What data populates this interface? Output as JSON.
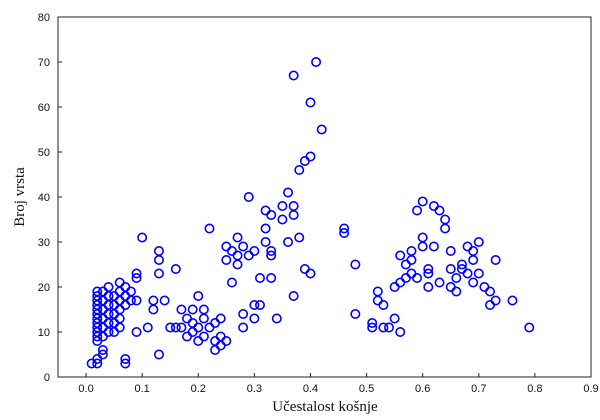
{
  "chart_data": {
    "type": "scatter",
    "xlabel": "Učestalost košnje",
    "ylabel": "Broj vrsta",
    "xlim": [
      -0.05,
      0.9
    ],
    "ylim": [
      0,
      80
    ],
    "xticks": [
      "0.0",
      "0.1",
      "0.2",
      "0.3",
      "0.4",
      "0.5",
      "0.6",
      "0.7",
      "0.8",
      "0.9"
    ],
    "xtick_values": [
      0.0,
      0.1,
      0.2,
      0.3,
      0.4,
      0.5,
      0.6,
      0.7,
      0.8,
      0.9
    ],
    "yticks": [
      "0",
      "10",
      "20",
      "30",
      "40",
      "50",
      "60",
      "70",
      "80"
    ],
    "ytick_values": [
      0,
      10,
      20,
      30,
      40,
      50,
      60,
      70,
      80
    ],
    "grid": false,
    "marker": "open-circle",
    "marker_color": "#0000ff",
    "series": [
      {
        "points": [
          [
            0.01,
            3
          ],
          [
            0.02,
            3
          ],
          [
            0.02,
            4
          ],
          [
            0.03,
            5
          ],
          [
            0.03,
            6
          ],
          [
            0.02,
            8
          ],
          [
            0.02,
            9
          ],
          [
            0.02,
            10
          ],
          [
            0.02,
            11
          ],
          [
            0.02,
            12
          ],
          [
            0.02,
            13
          ],
          [
            0.02,
            14
          ],
          [
            0.02,
            15
          ],
          [
            0.02,
            16
          ],
          [
            0.02,
            17
          ],
          [
            0.02,
            18
          ],
          [
            0.02,
            19
          ],
          [
            0.03,
            9
          ],
          [
            0.03,
            11
          ],
          [
            0.03,
            13
          ],
          [
            0.03,
            15
          ],
          [
            0.03,
            17
          ],
          [
            0.03,
            19
          ],
          [
            0.04,
            10
          ],
          [
            0.04,
            12
          ],
          [
            0.04,
            14
          ],
          [
            0.04,
            16
          ],
          [
            0.04,
            18
          ],
          [
            0.04,
            20
          ],
          [
            0.05,
            10
          ],
          [
            0.05,
            12
          ],
          [
            0.05,
            14
          ],
          [
            0.05,
            16
          ],
          [
            0.05,
            18
          ],
          [
            0.06,
            11
          ],
          [
            0.06,
            13
          ],
          [
            0.06,
            15
          ],
          [
            0.06,
            17
          ],
          [
            0.06,
            19
          ],
          [
            0.06,
            21
          ],
          [
            0.07,
            3
          ],
          [
            0.07,
            4
          ],
          [
            0.07,
            16
          ],
          [
            0.07,
            18
          ],
          [
            0.07,
            20
          ],
          [
            0.08,
            17
          ],
          [
            0.08,
            19
          ],
          [
            0.09,
            22
          ],
          [
            0.09,
            23
          ],
          [
            0.09,
            17
          ],
          [
            0.09,
            10
          ],
          [
            0.1,
            31
          ],
          [
            0.11,
            11
          ],
          [
            0.12,
            15
          ],
          [
            0.12,
            17
          ],
          [
            0.13,
            5
          ],
          [
            0.13,
            23
          ],
          [
            0.13,
            26
          ],
          [
            0.13,
            28
          ],
          [
            0.14,
            17
          ],
          [
            0.15,
            11
          ],
          [
            0.16,
            11
          ],
          [
            0.16,
            24
          ],
          [
            0.17,
            11
          ],
          [
            0.17,
            15
          ],
          [
            0.18,
            13
          ],
          [
            0.18,
            9
          ],
          [
            0.19,
            10
          ],
          [
            0.19,
            12
          ],
          [
            0.19,
            15
          ],
          [
            0.2,
            8
          ],
          [
            0.2,
            11
          ],
          [
            0.2,
            18
          ],
          [
            0.21,
            9
          ],
          [
            0.21,
            13
          ],
          [
            0.21,
            15
          ],
          [
            0.22,
            33
          ],
          [
            0.22,
            11
          ],
          [
            0.23,
            8
          ],
          [
            0.23,
            12
          ],
          [
            0.23,
            6
          ],
          [
            0.24,
            7
          ],
          [
            0.24,
            9
          ],
          [
            0.24,
            13
          ],
          [
            0.25,
            26
          ],
          [
            0.25,
            29
          ],
          [
            0.25,
            8
          ],
          [
            0.26,
            28
          ],
          [
            0.26,
            21
          ],
          [
            0.27,
            25
          ],
          [
            0.27,
            31
          ],
          [
            0.27,
            27
          ],
          [
            0.28,
            29
          ],
          [
            0.28,
            11
          ],
          [
            0.28,
            14
          ],
          [
            0.29,
            40
          ],
          [
            0.29,
            27
          ],
          [
            0.3,
            28
          ],
          [
            0.3,
            13
          ],
          [
            0.3,
            16
          ],
          [
            0.31,
            22
          ],
          [
            0.31,
            16
          ],
          [
            0.32,
            37
          ],
          [
            0.32,
            33
          ],
          [
            0.32,
            30
          ],
          [
            0.33,
            36
          ],
          [
            0.33,
            27
          ],
          [
            0.33,
            28
          ],
          [
            0.33,
            22
          ],
          [
            0.34,
            13
          ],
          [
            0.35,
            35
          ],
          [
            0.35,
            38
          ],
          [
            0.36,
            41
          ],
          [
            0.37,
            67
          ],
          [
            0.37,
            36
          ],
          [
            0.37,
            38
          ],
          [
            0.36,
            30
          ],
          [
            0.37,
            18
          ],
          [
            0.38,
            31
          ],
          [
            0.38,
            46
          ],
          [
            0.39,
            48
          ],
          [
            0.4,
            49
          ],
          [
            0.4,
            61
          ],
          [
            0.41,
            70
          ],
          [
            0.42,
            55
          ],
          [
            0.39,
            24
          ],
          [
            0.4,
            23
          ],
          [
            0.46,
            33
          ],
          [
            0.46,
            32
          ],
          [
            0.48,
            25
          ],
          [
            0.48,
            14
          ],
          [
            0.51,
            12
          ],
          [
            0.51,
            11
          ],
          [
            0.52,
            19
          ],
          [
            0.52,
            17
          ],
          [
            0.53,
            11
          ],
          [
            0.53,
            16
          ],
          [
            0.54,
            11
          ],
          [
            0.55,
            13
          ],
          [
            0.55,
            20
          ],
          [
            0.56,
            27
          ],
          [
            0.56,
            21
          ],
          [
            0.56,
            10
          ],
          [
            0.57,
            25
          ],
          [
            0.57,
            22
          ],
          [
            0.58,
            28
          ],
          [
            0.58,
            26
          ],
          [
            0.58,
            23
          ],
          [
            0.59,
            37
          ],
          [
            0.59,
            22
          ],
          [
            0.6,
            31
          ],
          [
            0.6,
            39
          ],
          [
            0.6,
            29
          ],
          [
            0.61,
            24
          ],
          [
            0.61,
            23
          ],
          [
            0.61,
            20
          ],
          [
            0.62,
            38
          ],
          [
            0.62,
            29
          ],
          [
            0.63,
            37
          ],
          [
            0.63,
            21
          ],
          [
            0.64,
            35
          ],
          [
            0.64,
            33
          ],
          [
            0.65,
            28
          ],
          [
            0.65,
            24
          ],
          [
            0.65,
            20
          ],
          [
            0.66,
            22
          ],
          [
            0.66,
            19
          ],
          [
            0.67,
            25
          ],
          [
            0.67,
            24
          ],
          [
            0.68,
            29
          ],
          [
            0.68,
            23
          ],
          [
            0.69,
            26
          ],
          [
            0.69,
            28
          ],
          [
            0.69,
            21
          ],
          [
            0.7,
            30
          ],
          [
            0.7,
            23
          ],
          [
            0.71,
            20
          ],
          [
            0.72,
            19
          ],
          [
            0.72,
            16
          ],
          [
            0.73,
            26
          ],
          [
            0.73,
            17
          ],
          [
            0.76,
            17
          ],
          [
            0.79,
            11
          ]
        ]
      }
    ]
  }
}
